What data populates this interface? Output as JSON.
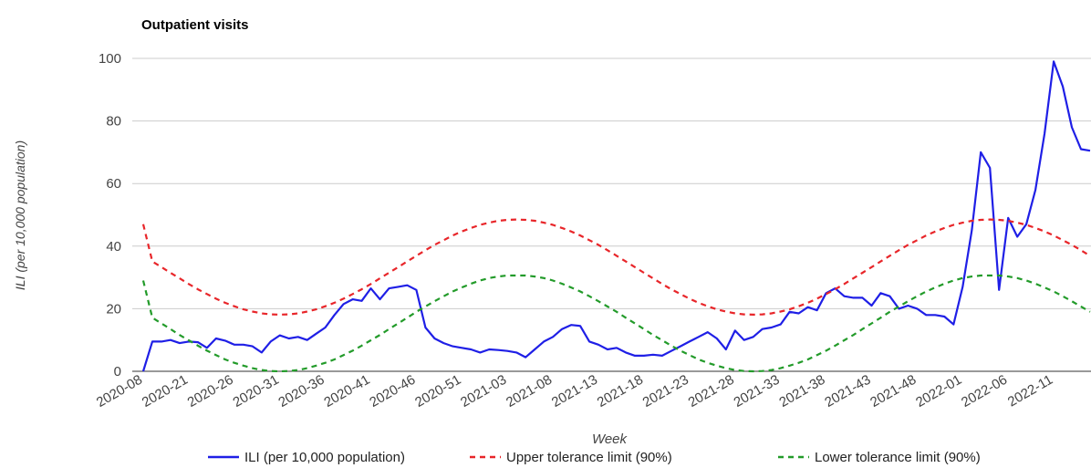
{
  "chart_data": {
    "type": "line",
    "title": "Outpatient visits",
    "x_label": "Week",
    "y_label": "ILI (per 10,000 population)",
    "categories": [
      "2020-08",
      null,
      null,
      null,
      null,
      "2020-21",
      null,
      null,
      null,
      null,
      "2020-26",
      null,
      null,
      null,
      null,
      "2020-31",
      null,
      null,
      null,
      null,
      "2020-36",
      null,
      null,
      null,
      null,
      "2020-41",
      null,
      null,
      null,
      null,
      "2020-46",
      null,
      null,
      null,
      null,
      "2020-51",
      null,
      null,
      null,
      null,
      "2021-03",
      null,
      null,
      null,
      null,
      "2021-08",
      null,
      null,
      null,
      null,
      "2021-13",
      null,
      null,
      null,
      null,
      "2021-18",
      null,
      null,
      null,
      null,
      "2021-23",
      null,
      null,
      null,
      null,
      "2021-28",
      null,
      null,
      null,
      null,
      "2021-33",
      null,
      null,
      null,
      null,
      "2021-38",
      null,
      null,
      null,
      null,
      "2021-43",
      null,
      null,
      null,
      null,
      "2021-48",
      null,
      null,
      null,
      null,
      "2022-01",
      null,
      null,
      null,
      null,
      "2022-06",
      null,
      null,
      null,
      null,
      "2022-11",
      null,
      null,
      null,
      null
    ],
    "series": [
      {
        "name": "ILI (per 10,000 population)",
        "color": "#1f1fe6",
        "style": "solid",
        "values": [
          0,
          9.5,
          9.5,
          10,
          9,
          9.5,
          9.3,
          7.5,
          10.5,
          9.8,
          8.5,
          8.5,
          8,
          6,
          9.5,
          11.5,
          10.5,
          11,
          10,
          12,
          14,
          18,
          21.5,
          23,
          22.5,
          26.5,
          23,
          26.5,
          27,
          27.5,
          26,
          14,
          10.5,
          9,
          8,
          7.5,
          7,
          6,
          7,
          6.8,
          6.5,
          6,
          4.5,
          7,
          9.5,
          11,
          13.5,
          14.8,
          14.5,
          9.5,
          8.5,
          7,
          7.5,
          6,
          5,
          5,
          5.3,
          5,
          6.5,
          8,
          9.5,
          11,
          12.5,
          10.5,
          7,
          13,
          10,
          11,
          13.5,
          14,
          15,
          19,
          18.5,
          20.5,
          19.5,
          25,
          26.5,
          24,
          23.5,
          23.5,
          21,
          25,
          24,
          20,
          21,
          20,
          18,
          18,
          17.5,
          15,
          27,
          45,
          70,
          65,
          26,
          49,
          43,
          47,
          58,
          76,
          99,
          91,
          78,
          71,
          70.5
        ]
      },
      {
        "name": "Upper tolerance limit (90%)",
        "color": "#e8262a",
        "style": "dashed",
        "values": [
          47,
          35.1,
          33.3,
          31.5,
          29.7,
          27.9,
          26.2,
          24.7,
          23.2,
          21.9,
          20.8,
          19.8,
          19.1,
          18.5,
          18.2,
          18.1,
          18.2,
          18.5,
          19.1,
          19.8,
          20.8,
          21.9,
          23.2,
          24.7,
          26.2,
          27.9,
          29.7,
          31.5,
          33.3,
          35.1,
          36.9,
          38.7,
          40.4,
          41.9,
          43.4,
          44.7,
          45.8,
          46.8,
          47.5,
          48.1,
          48.4,
          48.5,
          48.4,
          48.1,
          47.5,
          46.8,
          45.8,
          44.7,
          43.4,
          41.9,
          40.4,
          38.7,
          36.9,
          35.1,
          33.3,
          31.5,
          29.7,
          27.9,
          26.2,
          24.7,
          23.2,
          21.9,
          20.8,
          19.8,
          19.1,
          18.5,
          18.2,
          18.1,
          18.2,
          18.5,
          19.1,
          19.8,
          20.8,
          21.9,
          23.2,
          24.7,
          26.2,
          27.9,
          29.7,
          31.5,
          33.3,
          35.1,
          36.9,
          38.7,
          40.4,
          41.9,
          43.4,
          44.7,
          45.8,
          46.8,
          47.5,
          48.1,
          48.4,
          48.5,
          48.4,
          48.1,
          47.5,
          46.8,
          45.8,
          44.7,
          43.4,
          41.9,
          40.4,
          38.7,
          36.9
        ]
      },
      {
        "name": "Lower tolerance limit (90%)",
        "color": "#239b2a",
        "style": "dashed",
        "values": [
          29,
          17.1,
          15.3,
          13.5,
          11.6,
          9.9,
          8.2,
          6.6,
          5.2,
          3.8,
          2.7,
          1.8,
          1.0,
          0.4,
          0.1,
          0,
          0.1,
          0.4,
          1.0,
          1.8,
          2.7,
          3.8,
          5.2,
          6.6,
          8.2,
          9.9,
          11.6,
          13.5,
          15.3,
          17.1,
          19.0,
          20.7,
          22.4,
          24.0,
          25.5,
          26.8,
          28.0,
          29.0,
          29.8,
          30.3,
          30.6,
          30.6,
          30.6,
          30.3,
          29.8,
          29.0,
          28.0,
          26.8,
          25.5,
          24.0,
          22.4,
          20.7,
          19.0,
          17.1,
          15.3,
          13.5,
          11.6,
          9.9,
          8.2,
          6.6,
          5.2,
          3.8,
          2.7,
          1.8,
          1.0,
          0.4,
          0.1,
          0,
          0.1,
          0.4,
          1.0,
          1.8,
          2.7,
          3.8,
          5.2,
          6.6,
          8.2,
          9.9,
          11.6,
          13.5,
          15.3,
          17.1,
          19.0,
          20.7,
          22.4,
          24.0,
          25.5,
          26.8,
          28.0,
          29.0,
          29.8,
          30.3,
          30.6,
          30.6,
          30.6,
          30.3,
          29.8,
          29.0,
          28.0,
          26.8,
          25.5,
          24.0,
          22.4,
          20.7,
          19.0
        ]
      }
    ],
    "ylim": [
      0,
      100
    ],
    "yticks": [
      0,
      20,
      40,
      60,
      80,
      100
    ],
    "grid": true,
    "legend": "bottom"
  }
}
